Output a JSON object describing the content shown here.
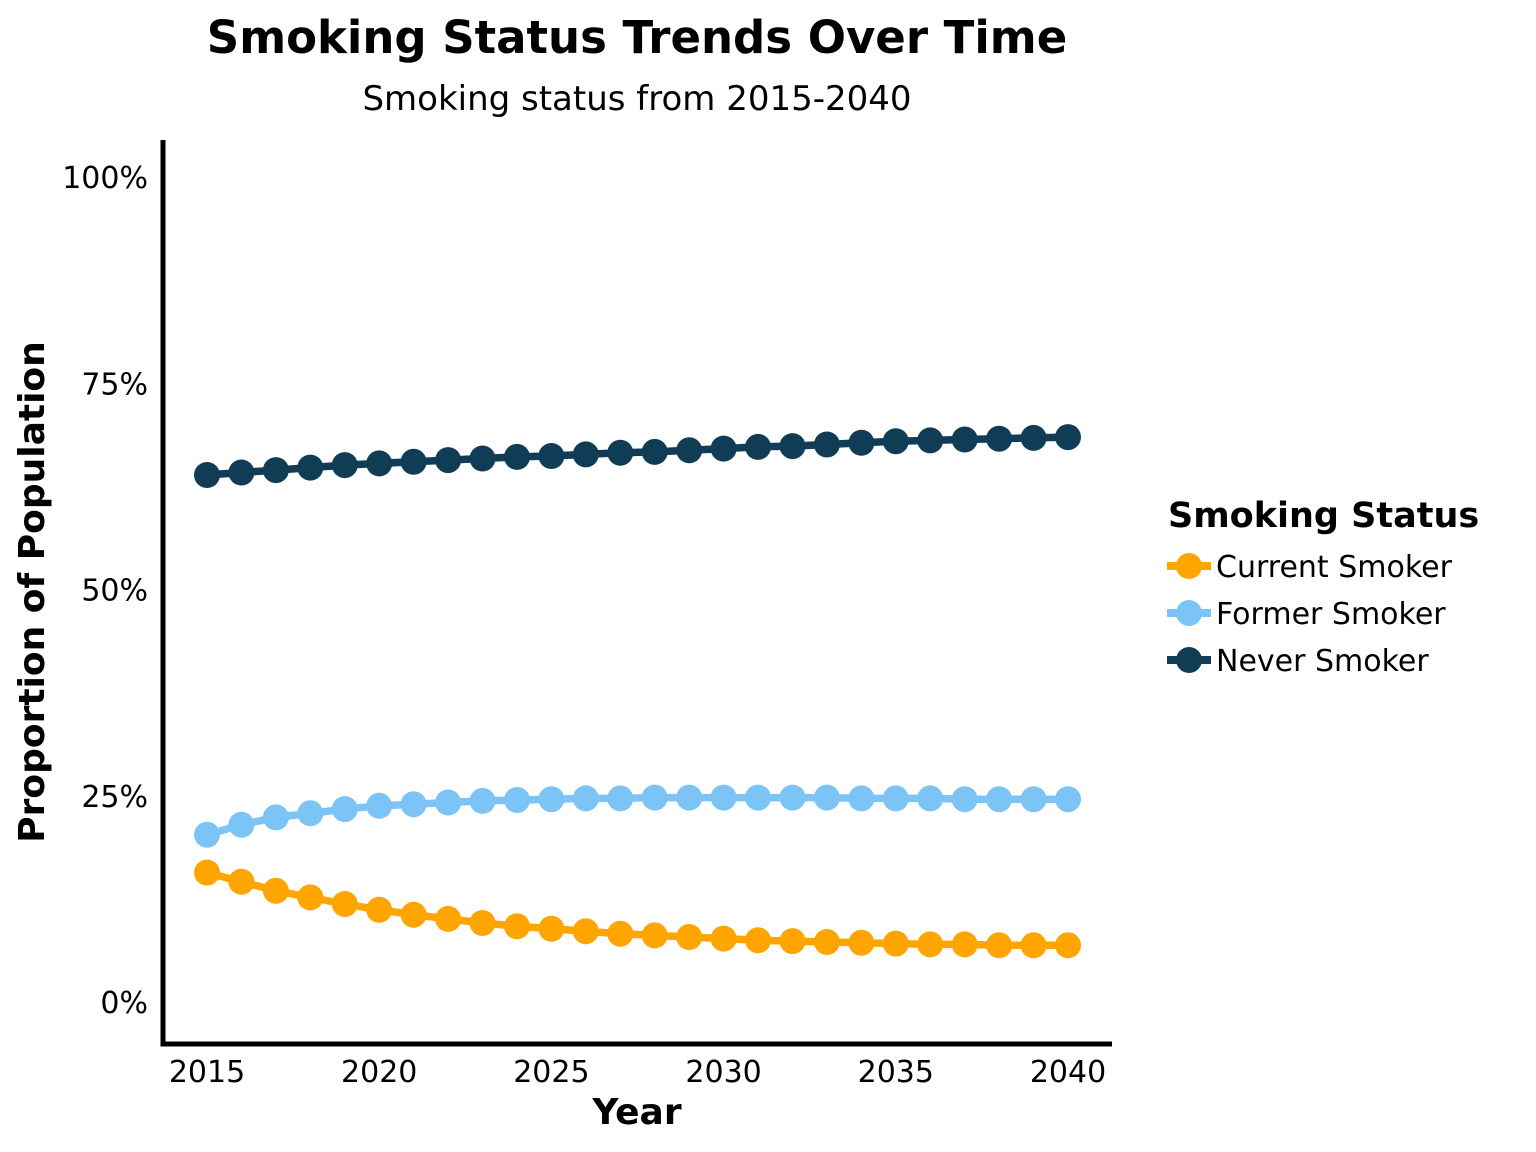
{
  "header": {
    "title": "Smoking Status Trends Over Time",
    "subtitle": "Smoking status from 2015-2040"
  },
  "axes": {
    "x_label": "Year",
    "y_label": "Proportion of Population"
  },
  "legend": {
    "title": "Smoking Status",
    "entries": [
      {
        "label": "Current Smoker",
        "color": "#FFA500"
      },
      {
        "label": "Former Smoker",
        "color": "#7CC4F5"
      },
      {
        "label": "Never Smoker",
        "color": "#113C55"
      }
    ]
  },
  "chart_data": {
    "type": "line",
    "title": "Smoking Status Trends Over Time",
    "subtitle": "Smoking status from 2015-2040",
    "xlabel": "Year",
    "ylabel": "Proportion of Population",
    "unit": "percent of population",
    "grid": false,
    "legend_position": "right",
    "marker": "circle",
    "xlim": [
      2015,
      2040
    ],
    "ylim": [
      0,
      100
    ],
    "x_ticks": [
      2015,
      2020,
      2025,
      2030,
      2035,
      2040
    ],
    "y_ticks": [
      {
        "value": 0,
        "label": "0%"
      },
      {
        "value": 25,
        "label": "25%"
      },
      {
        "value": 50,
        "label": "50%"
      },
      {
        "value": 75,
        "label": "75%"
      },
      {
        "value": 100,
        "label": "100%"
      }
    ],
    "x": [
      2015,
      2016,
      2017,
      2018,
      2019,
      2020,
      2021,
      2022,
      2023,
      2024,
      2025,
      2026,
      2027,
      2028,
      2029,
      2030,
      2031,
      2032,
      2033,
      2034,
      2035,
      2036,
      2037,
      2038,
      2039,
      2040
    ],
    "series": [
      {
        "name": "Current Smoker",
        "color": "#FFA500",
        "values": [
          15.8,
          14.7,
          13.6,
          12.8,
          12.0,
          11.3,
          10.7,
          10.2,
          9.7,
          9.3,
          9.0,
          8.7,
          8.4,
          8.2,
          8.0,
          7.8,
          7.6,
          7.5,
          7.4,
          7.3,
          7.2,
          7.1,
          7.1,
          7.0,
          7.0,
          7.0
        ]
      },
      {
        "name": "Former Smoker",
        "color": "#7CC4F5",
        "values": [
          20.4,
          21.6,
          22.5,
          23.0,
          23.5,
          23.9,
          24.1,
          24.3,
          24.5,
          24.6,
          24.7,
          24.8,
          24.8,
          24.9,
          24.9,
          24.9,
          24.9,
          24.9,
          24.9,
          24.8,
          24.8,
          24.8,
          24.7,
          24.7,
          24.7,
          24.7
        ]
      },
      {
        "name": "Never Smoker",
        "color": "#113C55",
        "values": [
          64.0,
          64.3,
          64.6,
          64.9,
          65.2,
          65.4,
          65.6,
          65.8,
          66.0,
          66.2,
          66.3,
          66.5,
          66.7,
          66.8,
          67.0,
          67.2,
          67.4,
          67.5,
          67.7,
          67.9,
          68.1,
          68.2,
          68.3,
          68.4,
          68.5,
          68.6
        ]
      }
    ]
  }
}
